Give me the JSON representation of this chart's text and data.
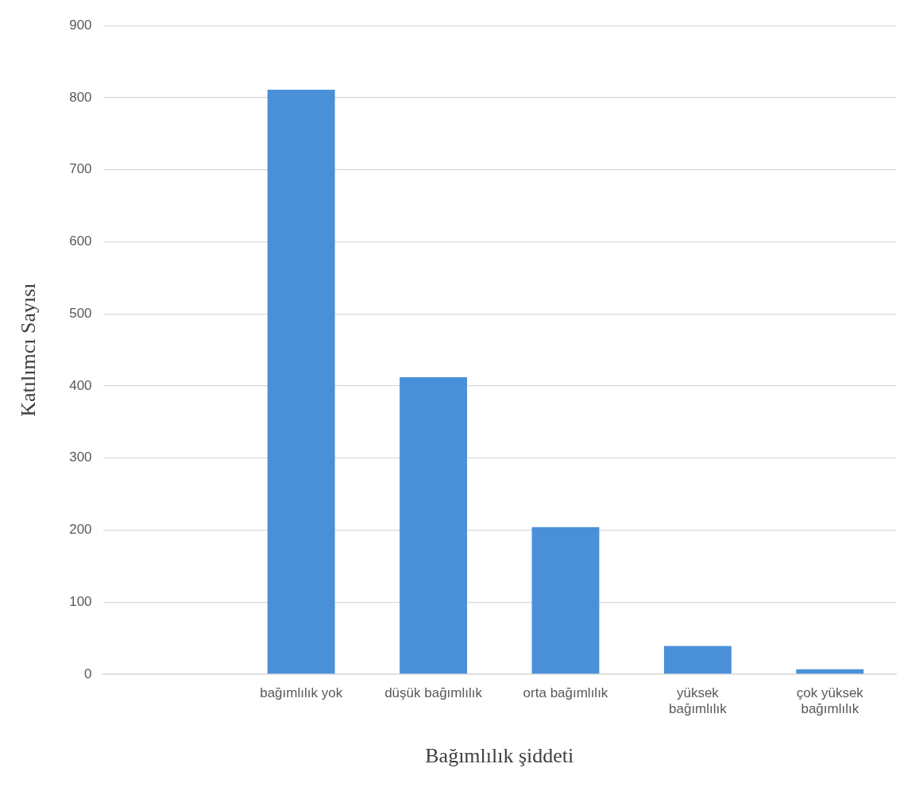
{
  "chart_data": {
    "type": "bar",
    "xlabel": "Bağımlılık şiddeti",
    "ylabel": "Katılımcı Sayısı",
    "categories": [
      null,
      "bağımlılık yok",
      "düşük bağımlılık",
      "orta bağımlılık",
      "yüksek bağımlılık",
      "çok yüksek bağımlılık"
    ],
    "values": [
      null,
      811,
      412,
      204,
      39,
      7
    ],
    "color": "#4a90d9",
    "ylim": [
      0,
      900
    ],
    "yticks": [
      0,
      100,
      200,
      300,
      400,
      500,
      600,
      700,
      800,
      900
    ],
    "grid": "y",
    "legend": false
  }
}
